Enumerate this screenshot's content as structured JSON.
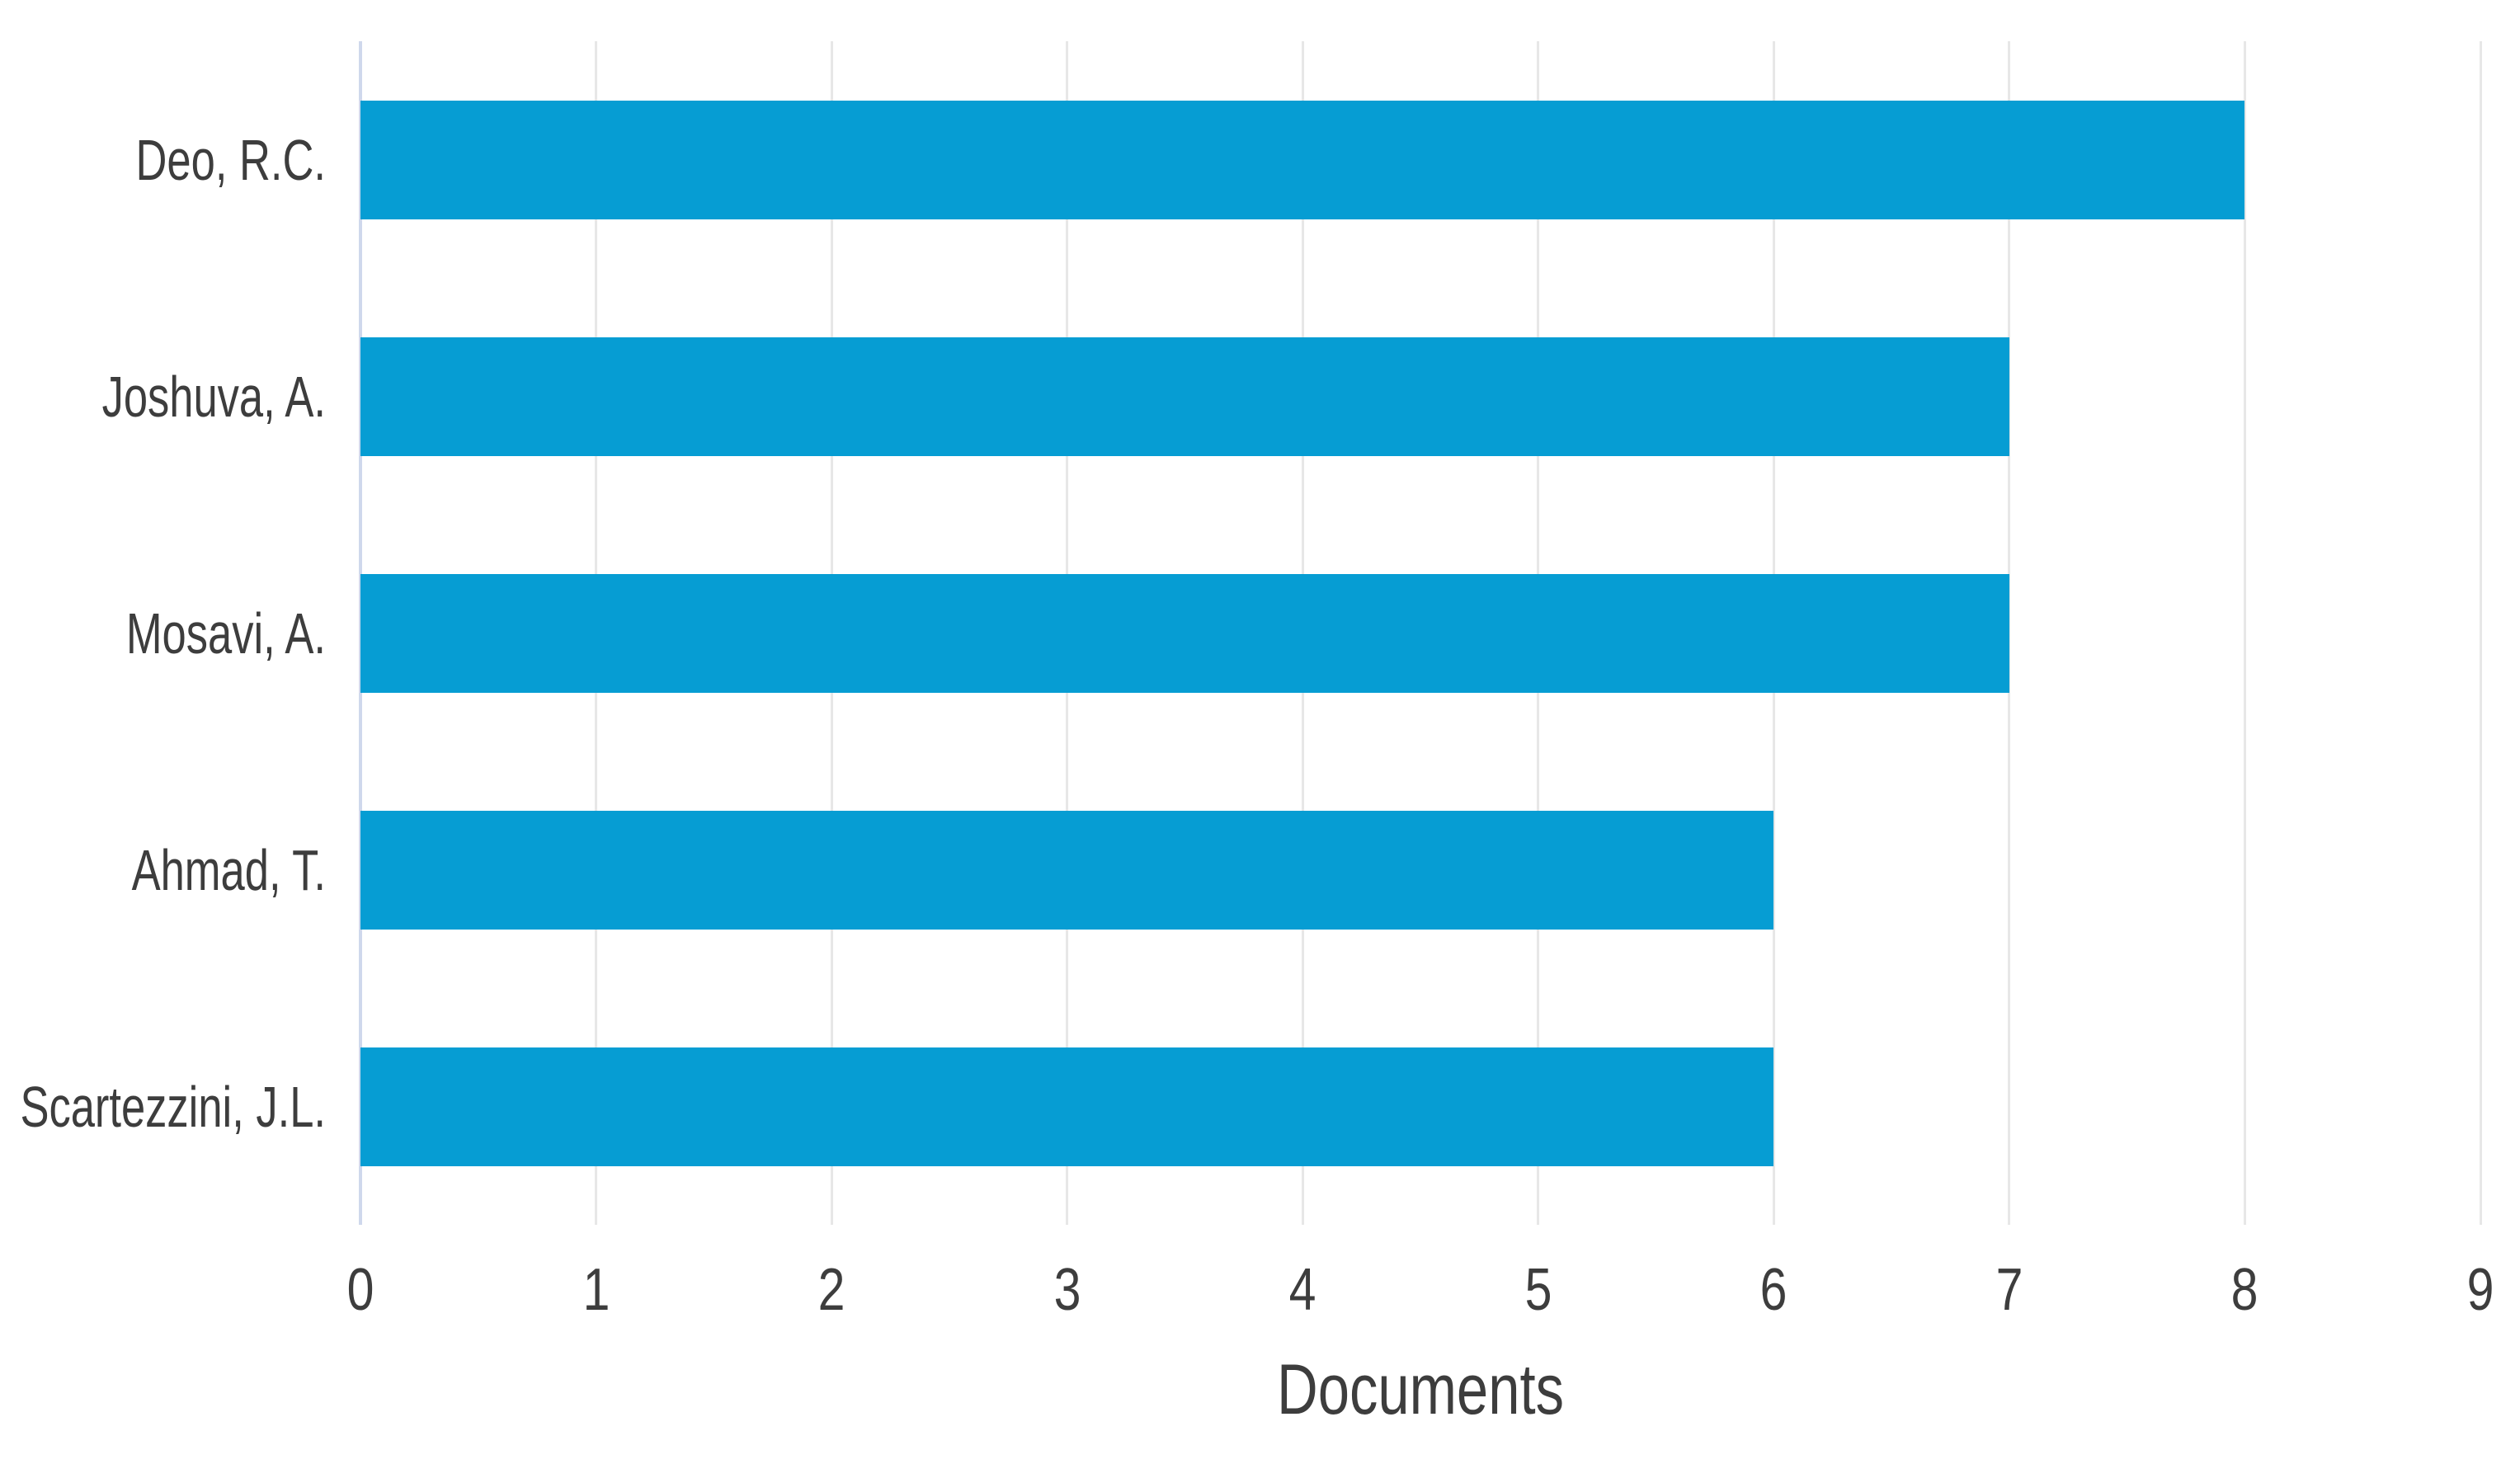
{
  "chart_data": {
    "type": "bar",
    "orientation": "horizontal",
    "title": "",
    "xlabel": "Documents",
    "ylabel": "",
    "categories": [
      "Deo, R.C.",
      "Joshuva, A.",
      "Mosavi, A.",
      "Ahmad, T.",
      "Scartezzini, J.L."
    ],
    "values": [
      8,
      7,
      7,
      6,
      6
    ],
    "xlim": [
      0,
      9
    ],
    "xticks": [
      "0",
      "1",
      "2",
      "3",
      "4",
      "5",
      "6",
      "7",
      "8",
      "9"
    ],
    "grid": true,
    "legend": false,
    "colors": {
      "bar": "#069dd3",
      "gridline": "#e7e7e7",
      "zero_axis_line": "#cfd8ec",
      "text": "#3d3d3d",
      "background": "#ffffff"
    }
  }
}
